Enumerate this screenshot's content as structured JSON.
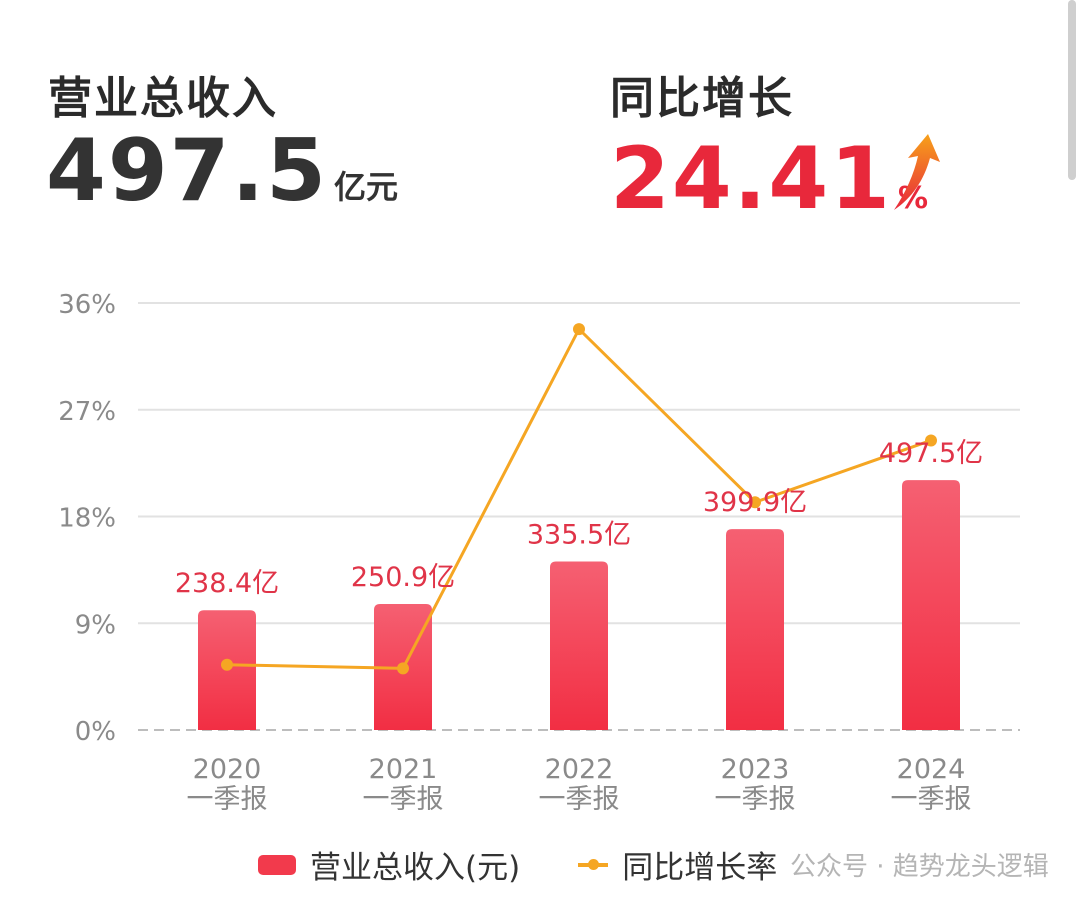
{
  "kpis": {
    "revenue": {
      "label": "营业总收入",
      "value": "497.5",
      "unit": "亿元"
    },
    "growth": {
      "label": "同比增长",
      "value": "24.41",
      "unit": "%"
    }
  },
  "chart_data": {
    "type": "bar",
    "categories": [
      [
        "2020",
        "一季报"
      ],
      [
        "2021",
        "一季报"
      ],
      [
        "2022",
        "一季报"
      ],
      [
        "2023",
        "一季报"
      ],
      [
        "2024",
        "一季报"
      ]
    ],
    "series": [
      {
        "name": "营业总收入(元)",
        "type": "bar",
        "values": [
          238.4,
          250.9,
          335.5,
          399.9,
          497.5
        ],
        "labels": [
          "238.4亿",
          "250.9亿",
          "335.5亿",
          "399.9亿",
          "497.5亿"
        ],
        "color": "#f23a4c"
      },
      {
        "name": "同比增长率",
        "type": "line",
        "values": [
          5.5,
          5.2,
          33.8,
          19.2,
          24.41
        ],
        "color": "#f5a623"
      }
    ],
    "yaxis_ticks": [
      "0%",
      "9%",
      "18%",
      "27%",
      "36%"
    ],
    "ylim": [
      0,
      36
    ],
    "grid": true,
    "legend": "bottom"
  },
  "watermark": "公众号 · 趋势龙头逻辑"
}
